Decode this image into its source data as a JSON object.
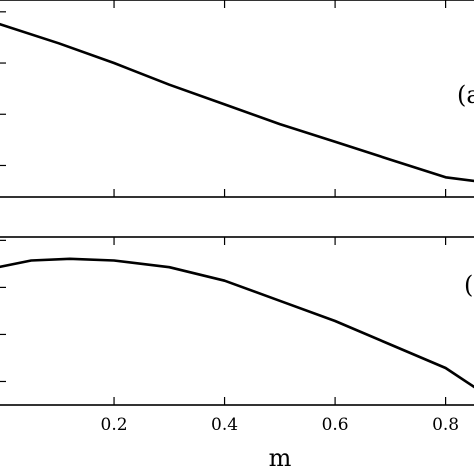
{
  "chart_data": [
    {
      "type": "line",
      "panel_label": "(a",
      "xlim": [
        -0.01,
        0.855
      ],
      "ylim": [
        0,
        1
      ],
      "x_ticks": [
        0.2,
        0.4,
        0.6,
        0.8
      ],
      "x_tick_labels": [
        "",
        "",
        "",
        ""
      ],
      "y_ticks": [
        0.16,
        0.42,
        0.68,
        0.94
      ],
      "grid": false,
      "series": [
        {
          "x": [
            -0.01,
            0.1,
            0.2,
            0.3,
            0.4,
            0.5,
            0.6,
            0.7,
            0.8,
            0.855
          ],
          "y": [
            0.88,
            0.78,
            0.68,
            0.57,
            0.47,
            0.37,
            0.28,
            0.19,
            0.1,
            0.08
          ]
        }
      ]
    },
    {
      "type": "line",
      "panel_label": "(",
      "xlim": [
        -0.01,
        0.855
      ],
      "ylim": [
        0,
        1
      ],
      "x_ticks": [
        0.2,
        0.4,
        0.6,
        0.8
      ],
      "x_tick_labels": [
        "0.2",
        "0.4",
        "0.6",
        "0.8"
      ],
      "y_ticks": [
        0.14,
        0.42,
        0.7,
        0.98
      ],
      "grid": false,
      "xlabel": "m",
      "series": [
        {
          "x": [
            -0.01,
            0.05,
            0.12,
            0.2,
            0.3,
            0.4,
            0.5,
            0.6,
            0.7,
            0.8,
            0.855
          ],
          "y": [
            0.82,
            0.86,
            0.87,
            0.86,
            0.82,
            0.74,
            0.62,
            0.5,
            0.36,
            0.22,
            0.1
          ]
        }
      ]
    }
  ]
}
